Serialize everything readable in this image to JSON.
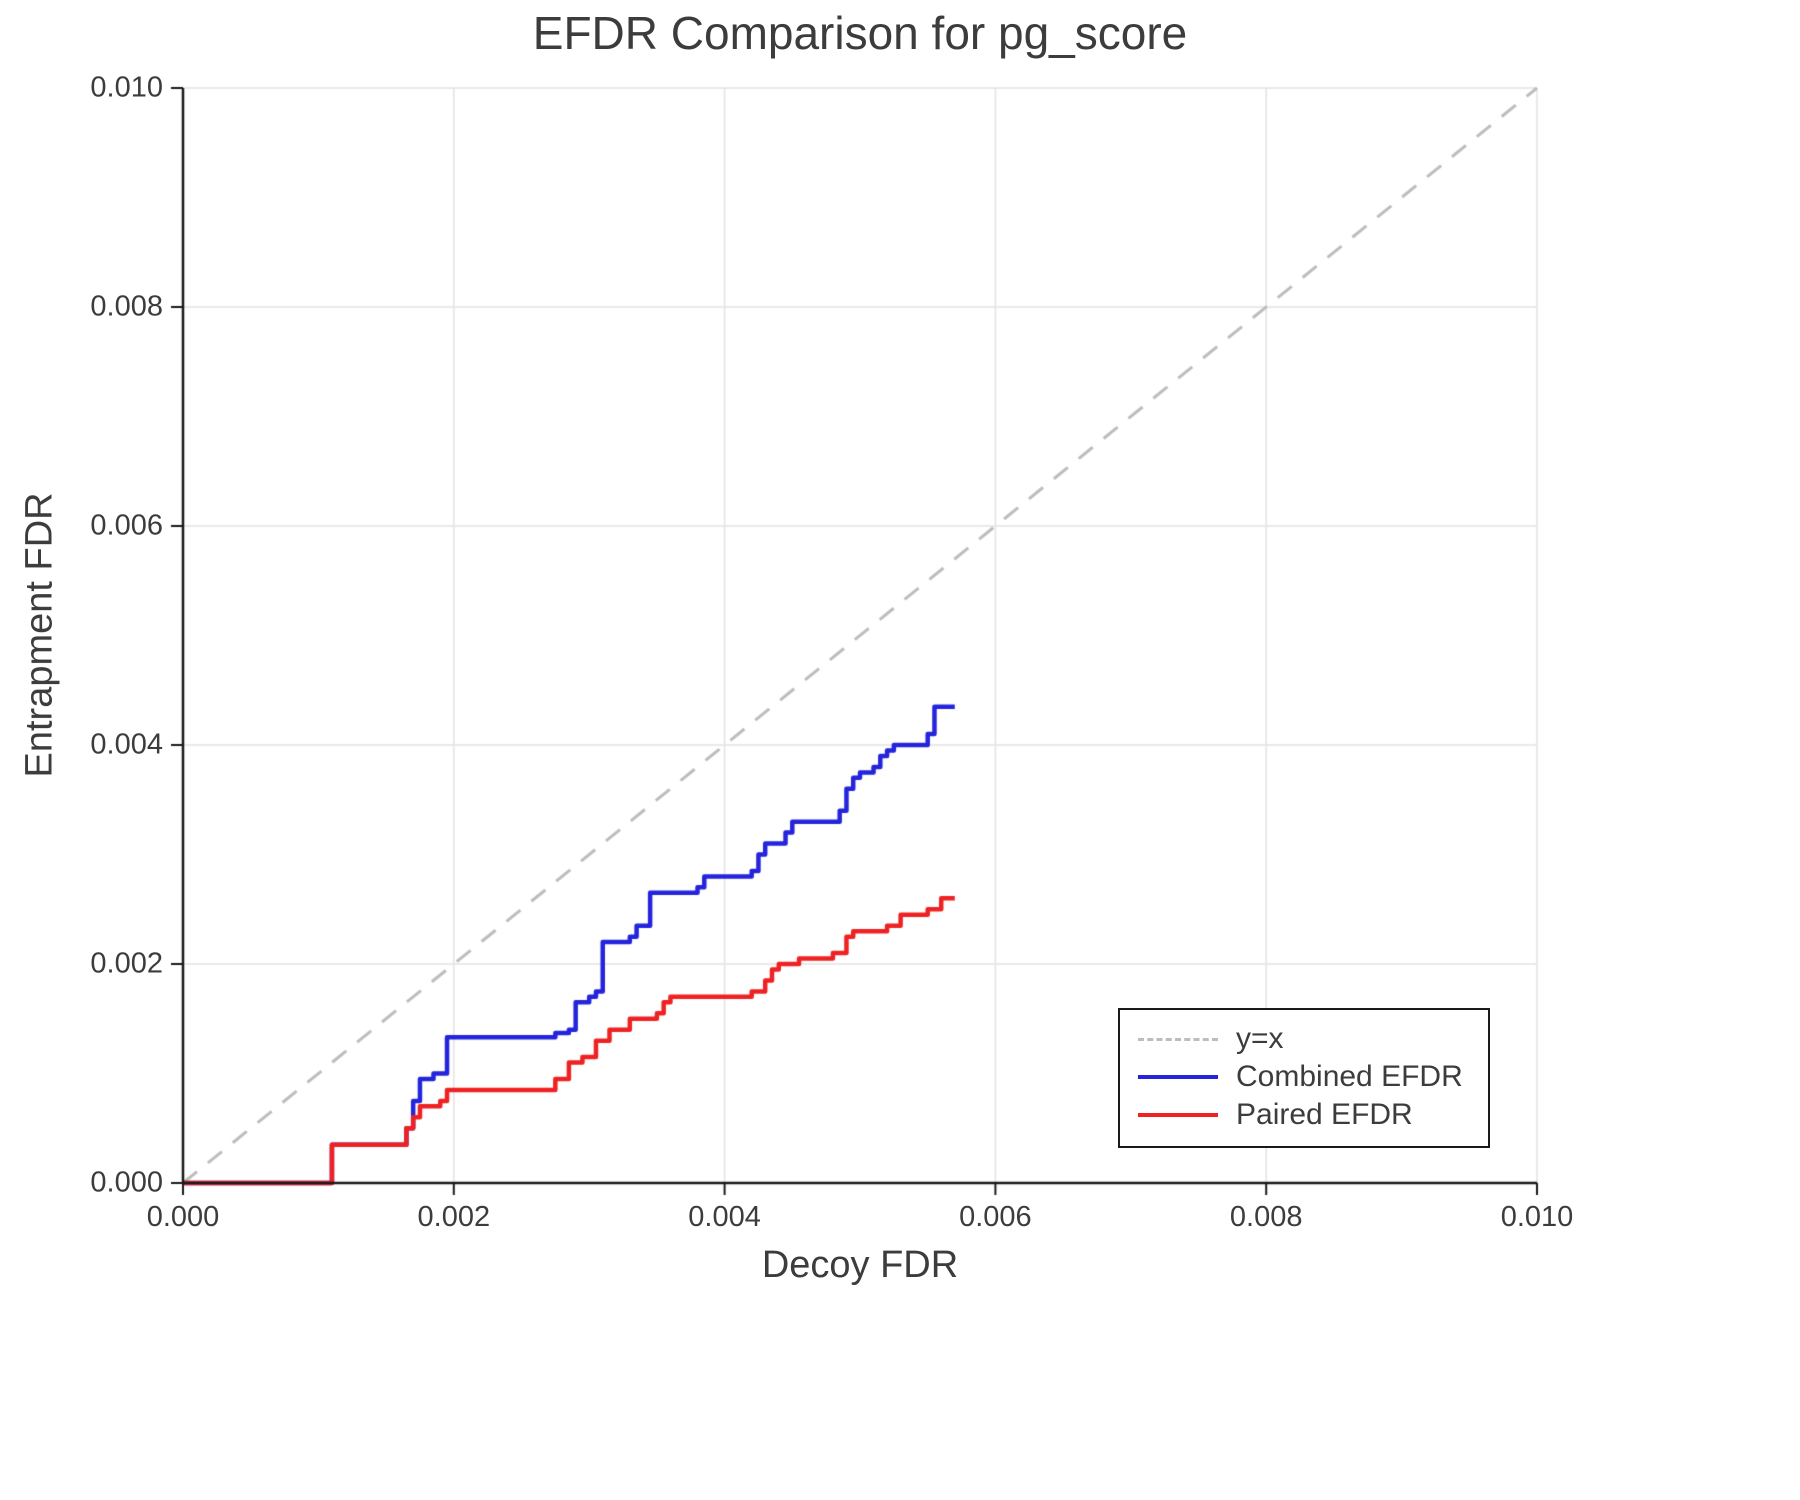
{
  "chart_data": {
    "type": "line",
    "title": "EFDR Comparison for pg_score",
    "xlabel": "Decoy FDR",
    "ylabel": "Entrapment FDR",
    "xlim": [
      0.0,
      0.01
    ],
    "ylim": [
      0.0,
      0.01
    ],
    "grid": true,
    "legend_position": "lower right",
    "xticks": [
      0.0,
      0.002,
      0.004,
      0.006,
      0.008,
      0.01
    ],
    "yticks": [
      0.0,
      0.002,
      0.004,
      0.006,
      0.008,
      0.01
    ],
    "xtick_labels": [
      "0.000",
      "0.002",
      "0.004",
      "0.006",
      "0.008",
      "0.010"
    ],
    "ytick_labels": [
      "0.000",
      "0.002",
      "0.004",
      "0.006",
      "0.008",
      "0.010"
    ],
    "colors": {
      "diagonal": "#bdbdbd",
      "combined": "#2424dd",
      "paired": "#ee2222",
      "grid": "#e3e3e3",
      "axis": "#1a1a1a"
    },
    "series": [
      {
        "name": "y=x",
        "kind": "diagonal",
        "style": "dashed",
        "color": "#bdbdbd",
        "points": [
          [
            0.0,
            0.0
          ],
          [
            0.01,
            0.01
          ]
        ]
      },
      {
        "name": "Combined EFDR",
        "kind": "step",
        "style": "solid",
        "color": "#2424dd",
        "end_x": 0.0057,
        "steps": [
          [
            0.0,
            0.0
          ],
          [
            0.0011,
            0.00035
          ],
          [
            0.00165,
            0.0005
          ],
          [
            0.0017,
            0.00075
          ],
          [
            0.00175,
            0.00095
          ],
          [
            0.00185,
            0.001
          ],
          [
            0.00195,
            0.00133
          ],
          [
            0.00275,
            0.00137
          ],
          [
            0.00285,
            0.0014
          ],
          [
            0.0029,
            0.00165
          ],
          [
            0.003,
            0.0017
          ],
          [
            0.00305,
            0.00175
          ],
          [
            0.0031,
            0.0022
          ],
          [
            0.0033,
            0.00225
          ],
          [
            0.00335,
            0.00235
          ],
          [
            0.00345,
            0.00265
          ],
          [
            0.0038,
            0.0027
          ],
          [
            0.00385,
            0.0028
          ],
          [
            0.0042,
            0.00285
          ],
          [
            0.00425,
            0.003
          ],
          [
            0.0043,
            0.0031
          ],
          [
            0.00445,
            0.0032
          ],
          [
            0.0045,
            0.0033
          ],
          [
            0.00485,
            0.0034
          ],
          [
            0.0049,
            0.0036
          ],
          [
            0.00495,
            0.0037
          ],
          [
            0.005,
            0.00375
          ],
          [
            0.0051,
            0.0038
          ],
          [
            0.00515,
            0.0039
          ],
          [
            0.0052,
            0.00395
          ],
          [
            0.00525,
            0.004
          ],
          [
            0.0055,
            0.0041
          ],
          [
            0.00555,
            0.00435
          ]
        ]
      },
      {
        "name": "Paired EFDR",
        "kind": "step",
        "style": "solid",
        "color": "#ee2222",
        "end_x": 0.0057,
        "steps": [
          [
            0.0,
            0.0
          ],
          [
            0.0011,
            0.00035
          ],
          [
            0.00165,
            0.0005
          ],
          [
            0.0017,
            0.0006
          ],
          [
            0.00175,
            0.0007
          ],
          [
            0.0019,
            0.00075
          ],
          [
            0.00195,
            0.00085
          ],
          [
            0.00275,
            0.00095
          ],
          [
            0.00285,
            0.0011
          ],
          [
            0.00295,
            0.00115
          ],
          [
            0.00305,
            0.0013
          ],
          [
            0.00315,
            0.0014
          ],
          [
            0.0033,
            0.0015
          ],
          [
            0.0035,
            0.00155
          ],
          [
            0.00355,
            0.00165
          ],
          [
            0.0036,
            0.0017
          ],
          [
            0.0042,
            0.00175
          ],
          [
            0.0043,
            0.00185
          ],
          [
            0.00435,
            0.00195
          ],
          [
            0.0044,
            0.002
          ],
          [
            0.00455,
            0.00205
          ],
          [
            0.0048,
            0.0021
          ],
          [
            0.0049,
            0.00225
          ],
          [
            0.00495,
            0.0023
          ],
          [
            0.0052,
            0.00235
          ],
          [
            0.0053,
            0.00245
          ],
          [
            0.0055,
            0.0025
          ],
          [
            0.0056,
            0.0026
          ]
        ]
      }
    ]
  }
}
